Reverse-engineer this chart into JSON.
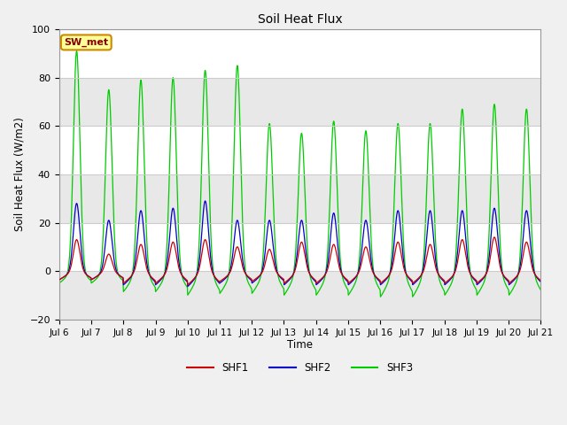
{
  "title": "Soil Heat Flux",
  "ylabel": "Soil Heat Flux (W/m2)",
  "xlabel": "Time",
  "ylim": [
    -20,
    100
  ],
  "bg_color": "#f0f0f0",
  "plot_bg": "#ffffff",
  "annotation_text": "SW_met",
  "annotation_bg": "#ffff99",
  "annotation_border": "#cc8800",
  "annotation_text_color": "#880000",
  "tick_labels": [
    "Jul 6",
    "Jul 7",
    "Jul 8",
    "Jul 9",
    "Jul 10",
    "Jul 11",
    "Jul 12",
    "Jul 13",
    "Jul 14",
    "Jul 15",
    "Jul 16",
    "Jul 17",
    "Jul 18",
    "Jul 19",
    "Jul 20",
    "Jul 21"
  ],
  "tick_positions": [
    0,
    1,
    2,
    3,
    4,
    5,
    6,
    7,
    8,
    9,
    10,
    11,
    12,
    13,
    14,
    15
  ],
  "shf1_color": "#cc0000",
  "shf2_color": "#0000cc",
  "shf3_color": "#00cc00",
  "legend_labels": [
    "SHF1",
    "SHF2",
    "SHF3"
  ],
  "shf1_peaks": [
    13,
    7,
    11,
    12,
    13,
    10,
    9,
    12,
    11,
    10,
    12,
    11,
    13,
    14,
    12
  ],
  "shf2_peaks": [
    28,
    21,
    25,
    26,
    29,
    21,
    21,
    21,
    24,
    21,
    25,
    25,
    25,
    26,
    25
  ],
  "shf3_peaks": [
    91,
    75,
    79,
    80,
    83,
    85,
    61,
    57,
    62,
    58,
    61,
    61,
    67,
    69,
    67
  ],
  "shf1_troughs": [
    -5,
    -5,
    -7,
    -7,
    -8,
    -6,
    -6,
    -7,
    -7,
    -7,
    -7,
    -7,
    -7,
    -7,
    -7
  ],
  "shf2_troughs": [
    -5,
    -5,
    -8,
    -8,
    -9,
    -7,
    -7,
    -8,
    -8,
    -8,
    -8,
    -8,
    -8,
    -8,
    -8
  ],
  "shf3_troughs": [
    -7,
    -7,
    -12,
    -12,
    -14,
    -13,
    -13,
    -14,
    -14,
    -14,
    -15,
    -15,
    -14,
    -14,
    -14
  ]
}
